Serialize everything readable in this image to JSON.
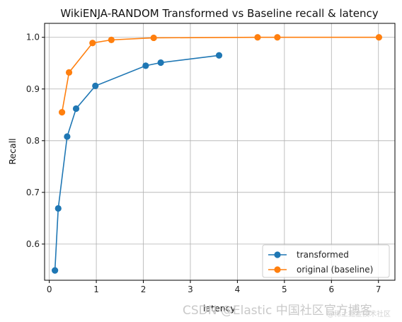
{
  "chart_data": {
    "type": "line",
    "title": "WikiENJA-RANDOM Transformed vs Baseline recall & latency",
    "xlabel": "latency",
    "ylabel": "Recall",
    "xlim": [
      -0.1,
      7.35
    ],
    "ylim": [
      0.53,
      1.027
    ],
    "xticks": [
      0,
      1,
      2,
      3,
      4,
      5,
      6,
      7
    ],
    "yticks": [
      0.6,
      0.7,
      0.8,
      0.9,
      1.0
    ],
    "ytick_labels": [
      "0.6",
      "0.7",
      "0.8",
      "0.9",
      "1.0"
    ],
    "grid": true,
    "legend_position": "lower-right",
    "series": [
      {
        "name": "transformed",
        "color": "#1f77b4",
        "marker": "circle",
        "x": [
          0.12,
          0.19,
          0.38,
          0.57,
          0.98,
          2.05,
          2.37,
          3.61
        ],
        "y": [
          0.549,
          0.669,
          0.808,
          0.862,
          0.906,
          0.945,
          0.951,
          0.965
        ]
      },
      {
        "name": "original (baseline)",
        "color": "#ff7f0e",
        "marker": "circle",
        "x": [
          0.27,
          0.42,
          0.92,
          1.32,
          2.22,
          4.43,
          4.85,
          7.01
        ],
        "y": [
          0.855,
          0.932,
          0.989,
          0.995,
          0.999,
          1.0,
          1.0,
          1.0
        ]
      }
    ]
  },
  "watermark": {
    "main": "CSDN @Elastic 中国社区官方博客",
    "small": "@稀土掘金技术社区"
  }
}
